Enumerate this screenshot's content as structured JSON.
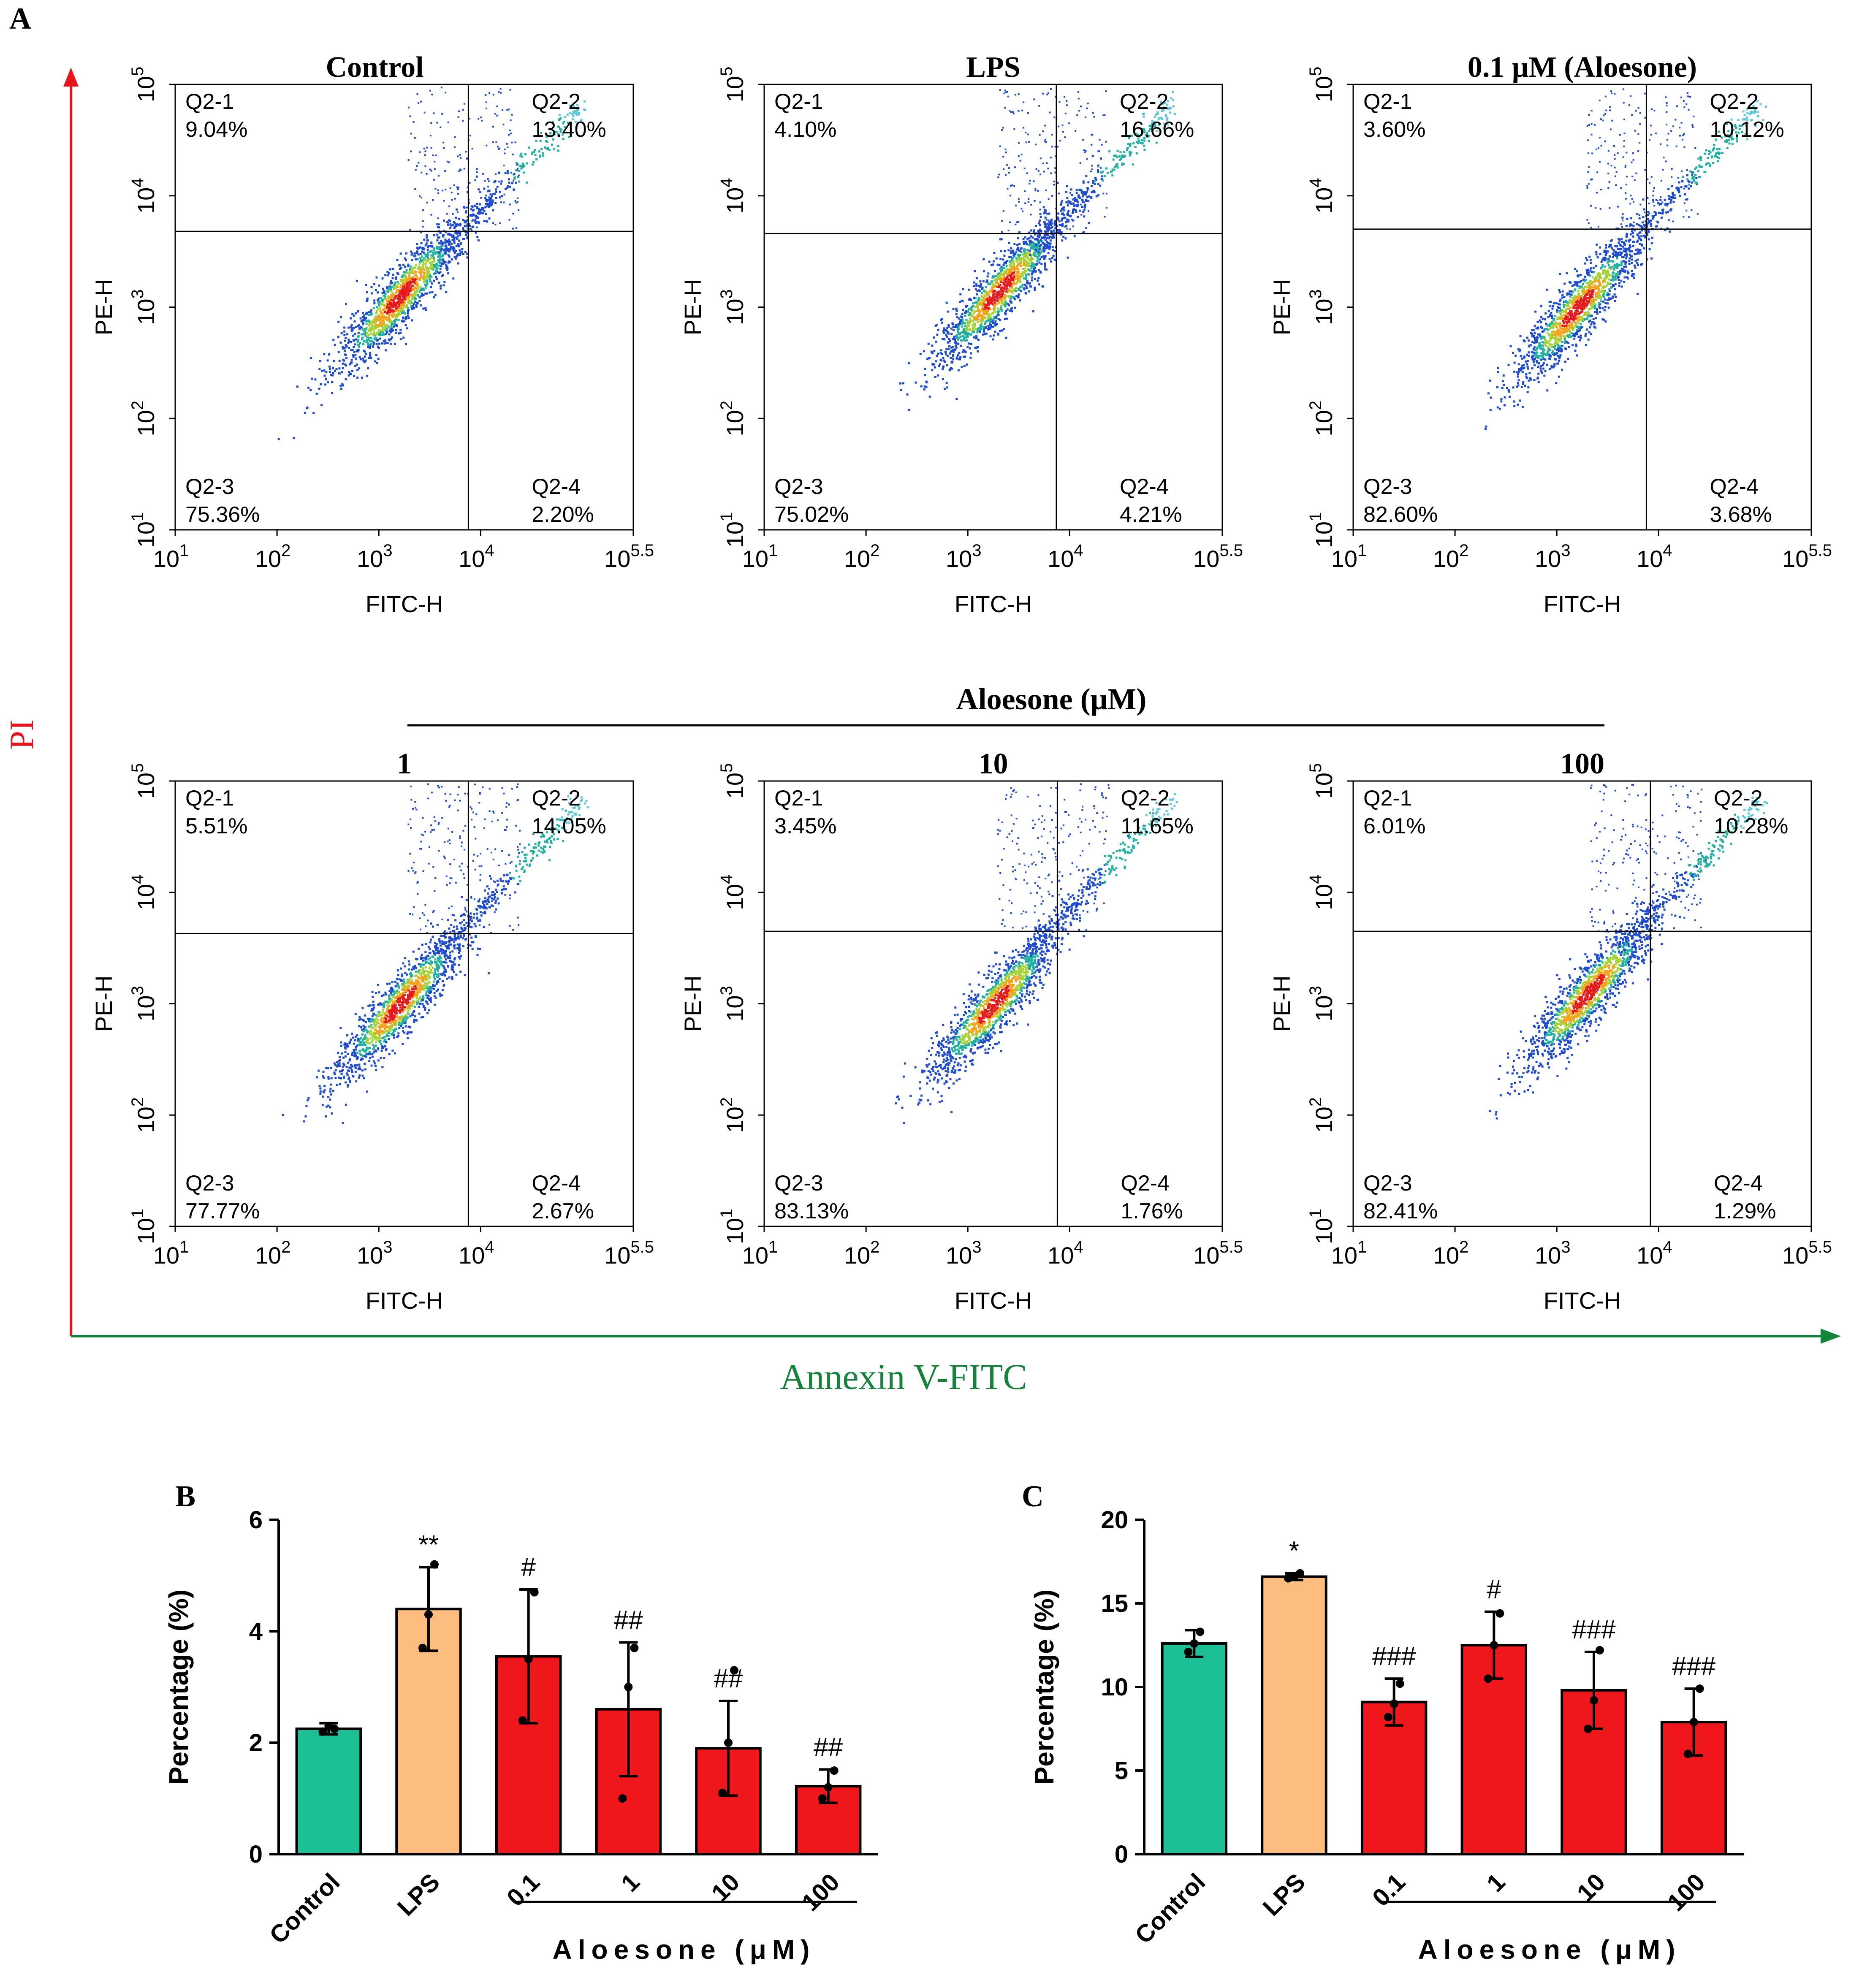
{
  "figure": {
    "panel_labels": [
      "A",
      "B",
      "C"
    ],
    "y_axis_big_label": "PI",
    "x_axis_big_label": "Annexin V-FITC",
    "aloesone_label": "Aloesone (μM)",
    "aloesone_label_spaced": "Aloesone (μM)",
    "colors": {
      "green_bar": "#1dbf97",
      "orange_bar": "#fdbd7e",
      "red_bar": "#f0171c",
      "pi_red": "#e8141b",
      "annexin_green": "#14843c",
      "flow_dot": "#1f4bd1"
    }
  },
  "flow_axes": {
    "x_label": "FITC-H",
    "y_label": "PE-H",
    "x_ticks": [
      {
        "base": "10",
        "exp": "1"
      },
      {
        "base": "10",
        "exp": "2"
      },
      {
        "base": "10",
        "exp": "3"
      },
      {
        "base": "10",
        "exp": "4"
      },
      {
        "base": "10",
        "exp": "5.5"
      }
    ],
    "y_ticks": [
      {
        "base": "10",
        "exp": "1"
      },
      {
        "base": "10",
        "exp": "2"
      },
      {
        "base": "10",
        "exp": "3"
      },
      {
        "base": "10",
        "exp": "4"
      },
      {
        "base": "10",
        "exp": "5"
      }
    ],
    "x_range_log": [
      1,
      5.5
    ],
    "y_range_log": [
      1,
      5
    ]
  },
  "chart_data": [
    {
      "type": "scatter",
      "title": "Control",
      "xlabel": "FITC-H",
      "ylabel": "PE-H",
      "quadrant_gate_log": {
        "x": 3.88,
        "y": 3.68
      },
      "quadrants": [
        {
          "name": "Q2-1",
          "value": "9.04%"
        },
        {
          "name": "Q2-2",
          "value": "13.40%"
        },
        {
          "name": "Q2-3",
          "value": "75.36%"
        },
        {
          "name": "Q2-4",
          "value": "2.20%"
        }
      ],
      "center_log": {
        "x": 3.2,
        "y": 3.1
      }
    },
    {
      "type": "scatter",
      "title": "LPS",
      "xlabel": "FITC-H",
      "ylabel": "PE-H",
      "quadrant_gate_log": {
        "x": 3.87,
        "y": 3.66
      },
      "quadrants": [
        {
          "name": "Q2-1",
          "value": "4.10%"
        },
        {
          "name": "Q2-2",
          "value": "16.66%"
        },
        {
          "name": "Q2-3",
          "value": "75.02%"
        },
        {
          "name": "Q2-4",
          "value": "4.21%"
        }
      ],
      "center_log": {
        "x": 3.3,
        "y": 3.15
      }
    },
    {
      "type": "scatter",
      "title": "0.1 μM (Aloesone)",
      "xlabel": "FITC-H",
      "ylabel": "PE-H",
      "quadrant_gate_log": {
        "x": 3.88,
        "y": 3.7
      },
      "quadrants": [
        {
          "name": "Q2-1",
          "value": "3.60%"
        },
        {
          "name": "Q2-2",
          "value": "10.12%"
        },
        {
          "name": "Q2-3",
          "value": "82.60%"
        },
        {
          "name": "Q2-4",
          "value": "3.68%"
        }
      ],
      "center_log": {
        "x": 3.2,
        "y": 3.0
      }
    },
    {
      "type": "scatter",
      "title": "1",
      "xlabel": "FITC-H",
      "ylabel": "PE-H",
      "quadrant_gate_log": {
        "x": 3.88,
        "y": 3.63
      },
      "quadrants": [
        {
          "name": "Q2-1",
          "value": "5.51%"
        },
        {
          "name": "Q2-2",
          "value": "14.05%"
        },
        {
          "name": "Q2-3",
          "value": "77.77%"
        },
        {
          "name": "Q2-4",
          "value": "2.67%"
        }
      ],
      "center_log": {
        "x": 3.2,
        "y": 3.0
      }
    },
    {
      "type": "scatter",
      "title": "10",
      "xlabel": "FITC-H",
      "ylabel": "PE-H",
      "quadrant_gate_log": {
        "x": 3.88,
        "y": 3.65
      },
      "quadrants": [
        {
          "name": "Q2-1",
          "value": "3.45%"
        },
        {
          "name": "Q2-2",
          "value": "11.65%"
        },
        {
          "name": "Q2-3",
          "value": "83.13%"
        },
        {
          "name": "Q2-4",
          "value": "1.76%"
        }
      ],
      "center_log": {
        "x": 3.25,
        "y": 3.0
      }
    },
    {
      "type": "scatter",
      "title": "100",
      "xlabel": "FITC-H",
      "ylabel": "PE-H",
      "quadrant_gate_log": {
        "x": 3.92,
        "y": 3.65
      },
      "quadrants": [
        {
          "name": "Q2-1",
          "value": "6.01%"
        },
        {
          "name": "Q2-2",
          "value": "10.28%"
        },
        {
          "name": "Q2-3",
          "value": "82.41%"
        },
        {
          "name": "Q2-4",
          "value": "1.29%"
        }
      ],
      "center_log": {
        "x": 3.3,
        "y": 3.1
      }
    },
    {
      "type": "bar",
      "panel": "B",
      "ylabel": "Percentage (%)",
      "ylim": [
        0,
        6
      ],
      "yticks": [
        "0",
        "2",
        "4",
        "6"
      ],
      "categories": [
        "Control",
        "LPS",
        "0.1",
        "1",
        "10",
        "100"
      ],
      "values": [
        2.25,
        4.4,
        3.55,
        2.6,
        1.9,
        1.22
      ],
      "errors": [
        0.1,
        0.75,
        1.2,
        1.2,
        0.85,
        0.3
      ],
      "points": [
        [
          2.2,
          2.3,
          2.25
        ],
        [
          3.7,
          4.3,
          5.2
        ],
        [
          2.4,
          3.5,
          4.7
        ],
        [
          1.0,
          3.0,
          3.7
        ],
        [
          1.1,
          2.0,
          3.3
        ],
        [
          1.0,
          1.2,
          1.5
        ]
      ],
      "annotations": [
        "",
        "**",
        "#",
        "##",
        "##",
        "##"
      ],
      "colors": [
        "#1dbf97",
        "#fdbd7e",
        "#f0171c",
        "#f0171c",
        "#f0171c",
        "#f0171c"
      ],
      "group_label": "Aloesone (μM)"
    },
    {
      "type": "bar",
      "panel": "C",
      "ylabel": "Percentage (%)",
      "ylim": [
        0,
        20
      ],
      "yticks": [
        "0",
        "5",
        "10",
        "15",
        "20"
      ],
      "categories": [
        "Control",
        "LPS",
        "0.1",
        "1",
        "10",
        "100"
      ],
      "values": [
        12.6,
        16.6,
        9.1,
        12.5,
        9.8,
        7.9
      ],
      "errors": [
        0.8,
        0.2,
        1.4,
        2.0,
        2.3,
        2.0
      ],
      "points": [
        [
          12.1,
          12.6,
          13.3
        ],
        [
          16.5,
          16.6,
          16.8
        ],
        [
          8.2,
          9.0,
          10.2
        ],
        [
          10.5,
          12.5,
          14.4
        ],
        [
          7.5,
          9.2,
          12.2
        ],
        [
          6.0,
          7.9,
          9.9
        ]
      ],
      "annotations": [
        "",
        "*",
        "###",
        "#",
        "###",
        "###"
      ],
      "colors": [
        "#1dbf97",
        "#fdbd7e",
        "#f0171c",
        "#f0171c",
        "#f0171c",
        "#f0171c"
      ],
      "group_label": "Aloesone (μM)"
    }
  ]
}
